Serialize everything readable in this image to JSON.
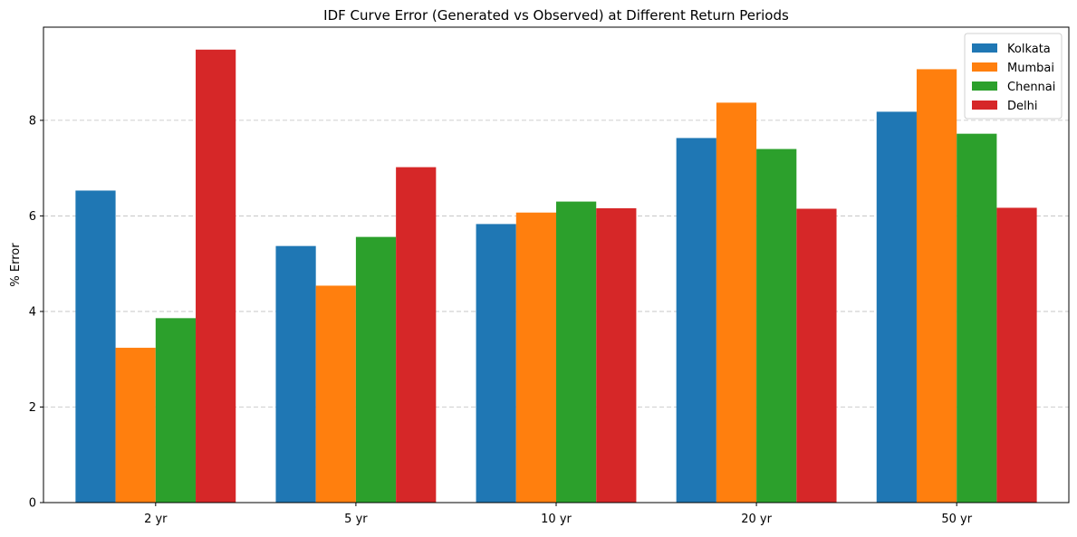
{
  "chart_data": {
    "type": "bar",
    "title": "IDF Curve Error (Generated vs Observed) at Different Return Periods",
    "xlabel": "",
    "ylabel": "% Error",
    "categories": [
      "2 yr",
      "5 yr",
      "10 yr",
      "20 yr",
      "50 yr"
    ],
    "series": [
      {
        "name": "Kolkata",
        "color": "#1f77b4",
        "values": [
          6.53,
          5.37,
          5.83,
          7.63,
          8.18
        ]
      },
      {
        "name": "Mumbai",
        "color": "#ff7f0e",
        "values": [
          3.24,
          4.54,
          6.07,
          8.37,
          9.07
        ]
      },
      {
        "name": "Chennai",
        "color": "#2ca02c",
        "values": [
          3.86,
          5.56,
          6.3,
          7.4,
          7.72
        ]
      },
      {
        "name": "Delhi",
        "color": "#d62728",
        "values": [
          9.48,
          7.02,
          6.16,
          6.15,
          6.17
        ]
      }
    ],
    "ylim": [
      0,
      9.95
    ],
    "yticks": [
      0,
      2,
      4,
      6,
      8
    ],
    "grid": "y-dashed",
    "legend": "top-right"
  }
}
